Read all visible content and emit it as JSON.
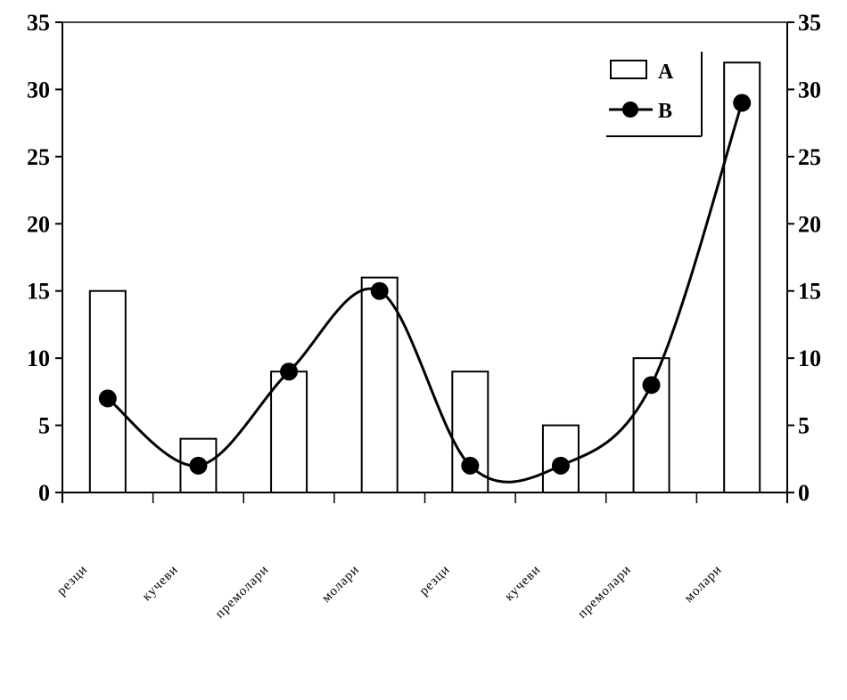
{
  "chart_data": {
    "type": "bar",
    "categories": [
      "резци",
      "кучеви",
      "премолари",
      "молари",
      "резци",
      "кучеви",
      "премолари",
      "молари"
    ],
    "series": [
      {
        "name": "A",
        "type": "bar",
        "values": [
          15,
          4,
          9,
          16,
          9,
          5,
          10,
          32
        ]
      },
      {
        "name": "B",
        "type": "line",
        "values": [
          7,
          2,
          9,
          15,
          2,
          2,
          8,
          29
        ]
      }
    ],
    "ylim": [
      0,
      35
    ],
    "yticks": [
      "0",
      "5",
      "10",
      "15",
      "20",
      "25",
      "30",
      "35"
    ],
    "y2ticks": [
      "0",
      "5",
      "10",
      "15",
      "20",
      "25",
      "30",
      "35"
    ],
    "legend_placement": "top-right",
    "grid": false,
    "colors": {
      "bar_fill": "#ffffff",
      "stroke": "#000000",
      "line": "#000000"
    }
  }
}
